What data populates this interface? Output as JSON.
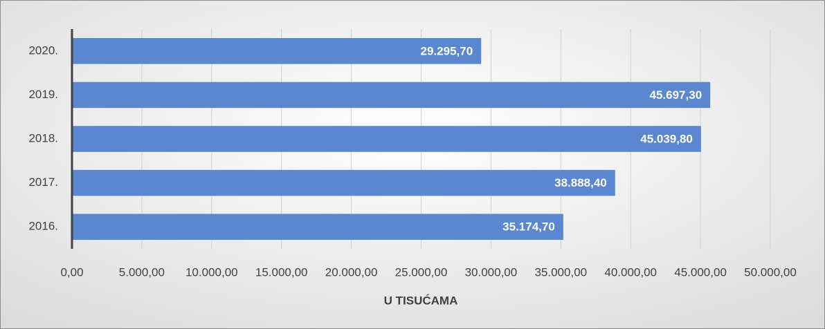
{
  "chart_data": {
    "type": "bar",
    "orientation": "horizontal",
    "categories": [
      "2020.",
      "2019.",
      "2018.",
      "2017.",
      "2016."
    ],
    "values": [
      29295.7,
      45697.3,
      45039.8,
      38888.4,
      35174.7
    ],
    "value_labels": [
      "29.295,70",
      "45.697,30",
      "45.039,80",
      "38.888,40",
      "35.174,70"
    ],
    "color": "#5b86d0",
    "x_label": "U TISUĆAMA",
    "xlim": [
      0,
      50000
    ],
    "xticks": [
      {
        "value": 0,
        "label": "0,00"
      },
      {
        "value": 5000,
        "label": "5.000,00"
      },
      {
        "value": 10000,
        "label": "10.000,00"
      },
      {
        "value": 15000,
        "label": "15.000,00"
      },
      {
        "value": 20000,
        "label": "20.000,00"
      },
      {
        "value": 25000,
        "label": "25.000,00"
      },
      {
        "value": 30000,
        "label": "30.000,00"
      },
      {
        "value": 35000,
        "label": "35.000,00"
      },
      {
        "value": 40000,
        "label": "40.000,00"
      },
      {
        "value": 45000,
        "label": "45.000,00"
      },
      {
        "value": 50000,
        "label": "50.000,00"
      }
    ],
    "grid": true
  }
}
